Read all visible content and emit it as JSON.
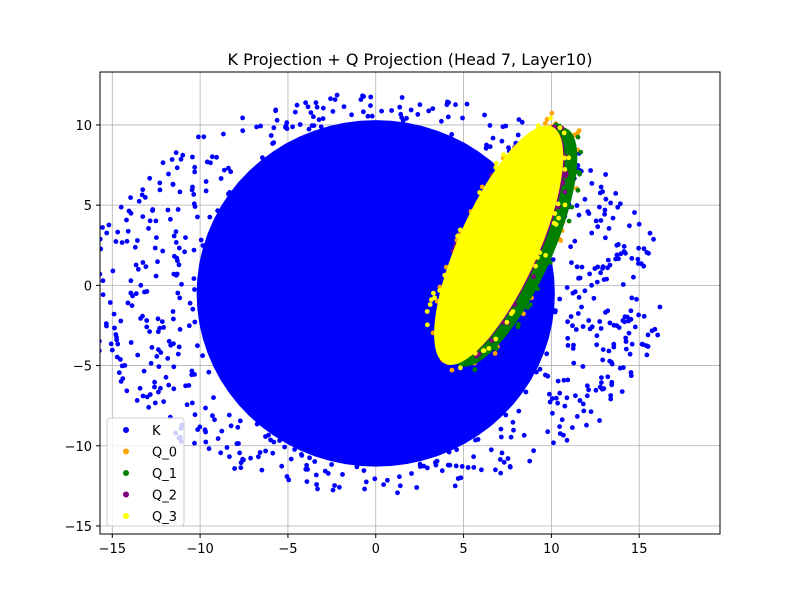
{
  "chart_data": {
    "type": "scatter",
    "title": "K Projection + Q Projection (Head 7, Layer10)",
    "xlabel": "",
    "ylabel": "",
    "xlim": [
      -15.7,
      19.6
    ],
    "ylim": [
      -15.5,
      13.3
    ],
    "x_ticks": [
      -15,
      -10,
      -5,
      0,
      5,
      10,
      15
    ],
    "y_ticks": [
      -15,
      -10,
      -5,
      0,
      5,
      10
    ],
    "x_tick_labels": [
      "−15",
      "−10",
      "−5",
      "0",
      "5",
      "10",
      "15"
    ],
    "y_tick_labels": [
      "−15",
      "−10",
      "−5",
      "0",
      "5",
      "10"
    ],
    "grid": true,
    "legend_position": "lower-left",
    "series": [
      {
        "name": "K",
        "color": "#0000ff",
        "shape": "ellipse",
        "center": [
          0,
          -0.5
        ],
        "radius": [
          10.2,
          10.8
        ],
        "angle_deg": 0,
        "scatter_radius": [
          16.5,
          12.5
        ]
      },
      {
        "name": "Q_0",
        "color": "#ffa500",
        "shape": "ellipse",
        "center": [
          7.5,
          2.6
        ],
        "radius": [
          2.3,
          8.0
        ],
        "angle_deg": -22,
        "scatter_radius": [
          2.9,
          8.8
        ]
      },
      {
        "name": "Q_1",
        "color": "#008000",
        "shape": "ellipse",
        "center": [
          7.8,
          2.4
        ],
        "radius": [
          2.3,
          8.0
        ],
        "angle_deg": -22,
        "scatter_radius": [
          2.6,
          8.4
        ]
      },
      {
        "name": "Q_2",
        "color": "#800080",
        "shape": "ellipse",
        "center": [
          7.2,
          2.5
        ],
        "radius": [
          2.2,
          7.8
        ],
        "angle_deg": -22,
        "scatter_radius": [
          2.5,
          8.2
        ]
      },
      {
        "name": "Q_3",
        "color": "#ffff00",
        "shape": "ellipse",
        "center": [
          7.0,
          2.5
        ],
        "radius": [
          2.3,
          8.0
        ],
        "angle_deg": -22,
        "scatter_radius": [
          2.9,
          8.5
        ]
      }
    ]
  }
}
